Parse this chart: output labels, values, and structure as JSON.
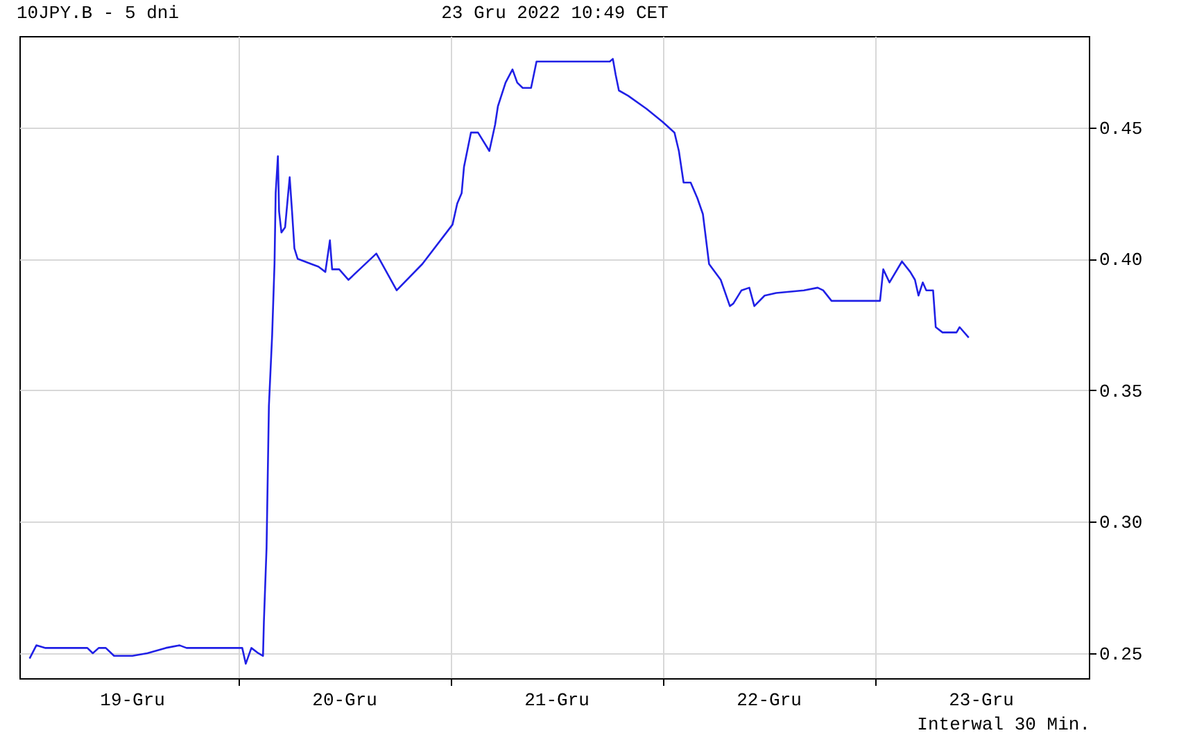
{
  "chart_data": {
    "type": "line",
    "title": "10JPY.B - 5 dni",
    "subtitle": "23 Gru 2022 10:49 CET",
    "annotations": [
      "Interwal 30 Min."
    ],
    "xlim": [
      "2022-12-18T23:17",
      "2022-12-24T00:14"
    ],
    "ylim": [
      0.2405,
      0.4847
    ],
    "yticks": [
      {
        "value": 0.25,
        "label": "0.25"
      },
      {
        "value": 0.3,
        "label": "0.30"
      },
      {
        "value": 0.35,
        "label": "0.35"
      },
      {
        "value": 0.4,
        "label": "0.40"
      },
      {
        "value": 0.45,
        "label": "0.45"
      }
    ],
    "xticks": [
      {
        "value": "2022-12-19T12:00",
        "label": "19-Gru"
      },
      {
        "value": "2022-12-20T00:00",
        "label": null
      },
      {
        "value": "2022-12-20T12:00",
        "label": "20-Gru"
      },
      {
        "value": "2022-12-21T00:00",
        "label": null
      },
      {
        "value": "2022-12-21T12:00",
        "label": "21-Gru"
      },
      {
        "value": "2022-12-22T00:00",
        "label": null
      },
      {
        "value": "2022-12-22T12:00",
        "label": "22-Gru"
      },
      {
        "value": "2022-12-23T00:00",
        "label": null
      },
      {
        "value": "2022-12-23T12:00",
        "label": "23-Gru"
      }
    ],
    "grid": true,
    "x": [
      "2022-12-19T00:26",
      "2022-12-19T01:12",
      "2022-12-19T02:14",
      "2022-12-19T06:58",
      "2022-12-19T07:35",
      "2022-12-19T08:15",
      "2022-12-19T09:03",
      "2022-12-19T09:59",
      "2022-12-19T12:04",
      "2022-12-19T13:45",
      "2022-12-19T15:50",
      "2022-12-19T17:24",
      "2022-12-19T18:11",
      "2022-12-20T00:29",
      "2022-12-20T00:53",
      "2022-12-20T01:31",
      "2022-12-20T02:18",
      "2022-12-20T02:50",
      "2022-12-20T02:56",
      "2022-12-20T03:14",
      "2022-12-20T03:30",
      "2022-12-20T03:52",
      "2022-12-20T04:08",
      "2022-12-20T04:16",
      "2022-12-20T04:31",
      "2022-12-20T04:39",
      "2022-12-20T04:55",
      "2022-12-20T05:20",
      "2022-12-20T05:41",
      "2022-12-20T05:51",
      "2022-12-20T06:07",
      "2022-12-20T06:23",
      "2022-12-20T06:45",
      "2022-12-20T07:32",
      "2022-12-20T08:18",
      "2022-12-20T09:06",
      "2022-12-20T09:53",
      "2022-12-20T10:24",
      "2022-12-20T10:39",
      "2022-12-20T11:27",
      "2022-12-20T12:30",
      "2022-12-20T15:39",
      "2022-12-20T17:57",
      "2022-12-20T20:51",
      "2022-12-21T00:16",
      "2022-12-21T00:48",
      "2022-12-21T01:18",
      "2022-12-21T01:34",
      "2022-12-21T02:21",
      "2022-12-21T03:09",
      "2022-12-21T04:26",
      "2022-12-21T05:05",
      "2022-12-21T05:24",
      "2022-12-21T06:16",
      "2022-12-21T07:03",
      "2022-12-21T07:35",
      "2022-12-21T08:12",
      "2022-12-21T09:09",
      "2022-12-21T09:46",
      "2022-12-21T10:12",
      "2022-12-21T14:23",
      "2022-12-21T14:47",
      "2022-12-21T18:03",
      "2022-12-21T18:24",
      "2022-12-21T18:43",
      "2022-12-21T19:05",
      "2022-12-21T20:08",
      "2022-12-21T22:13",
      "2022-12-22T00:03",
      "2022-12-22T01:22",
      "2022-12-22T01:52",
      "2022-12-22T02:24",
      "2022-12-22T03:12",
      "2022-12-22T03:58",
      "2022-12-22T04:35",
      "2022-12-22T05:17",
      "2022-12-22T06:36",
      "2022-12-22T07:38",
      "2022-12-22T08:02",
      "2022-12-22T08:57",
      "2022-12-22T09:50",
      "2022-12-22T10:24",
      "2022-12-22T11:34",
      "2022-12-22T12:52",
      "2022-12-22T16:00",
      "2022-12-22T17:34",
      "2022-12-22T18:11",
      "2022-12-22T19:08",
      "2022-12-23T00:37",
      "2022-12-23T00:59",
      "2022-12-23T01:41",
      "2022-12-23T03:06",
      "2022-12-23T04:02",
      "2022-12-23T04:34",
      "2022-12-23T04:58",
      "2022-12-23T05:27",
      "2022-12-23T05:51",
      "2022-12-23T06:37",
      "2022-12-23T06:55",
      "2022-12-23T07:41",
      "2022-12-23T09:16",
      "2022-12-23T09:37",
      "2022-12-23T10:39"
    ],
    "series": [
      {
        "color": "#2020e6",
        "values": [
          0.248,
          0.253,
          0.252,
          0.252,
          0.25,
          0.252,
          0.252,
          0.249,
          0.249,
          0.25,
          0.252,
          0.253,
          0.252,
          0.252,
          0.246,
          0.252,
          0.25,
          0.249,
          0.262,
          0.29,
          0.344,
          0.371,
          0.398,
          0.425,
          0.439,
          0.418,
          0.41,
          0.412,
          0.425,
          0.431,
          0.418,
          0.404,
          0.4,
          0.399,
          0.398,
          0.397,
          0.395,
          0.407,
          0.396,
          0.396,
          0.392,
          0.402,
          0.388,
          0.398,
          0.413,
          0.421,
          0.425,
          0.435,
          0.448,
          0.448,
          0.441,
          0.451,
          0.458,
          0.467,
          0.472,
          0.467,
          0.465,
          0.465,
          0.475,
          0.475,
          0.475,
          0.475,
          0.475,
          0.476,
          0.47,
          0.464,
          0.462,
          0.457,
          0.452,
          0.448,
          0.441,
          0.429,
          0.429,
          0.423,
          0.417,
          0.398,
          0.392,
          0.382,
          0.383,
          0.388,
          0.389,
          0.382,
          0.386,
          0.387,
          0.388,
          0.389,
          0.388,
          0.384,
          0.384,
          0.396,
          0.391,
          0.399,
          0.395,
          0.392,
          0.386,
          0.391,
          0.388,
          0.388,
          0.374,
          0.372,
          0.372,
          0.374,
          0.37
        ]
      }
    ]
  }
}
